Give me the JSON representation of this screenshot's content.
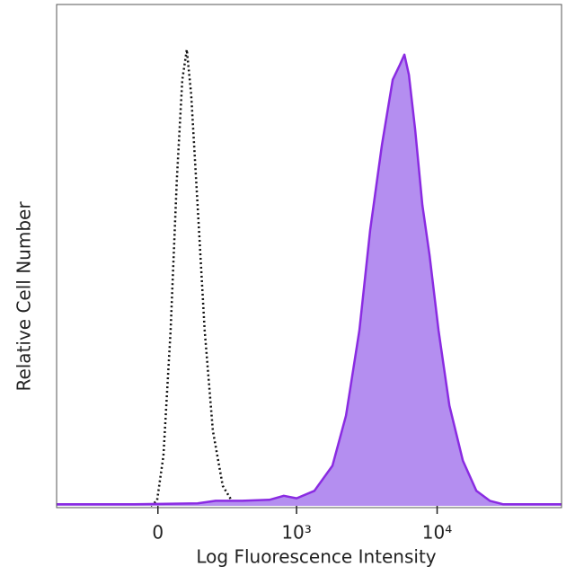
{
  "chart_data": {
    "type": "flow-histogram",
    "x_label": "Log Fluorescence Intensity",
    "y_label": "Relative Cell Number",
    "x_scale": "arcsinh",
    "xlim": [
      -530,
      76000
    ],
    "ylim": [
      0,
      100
    ],
    "xticks": [
      0,
      {
        "value": 1000,
        "label": "10³"
      },
      {
        "value": 10000,
        "label": "10⁴"
      }
    ],
    "series": [
      {
        "style": "dotted",
        "color": "#111111",
        "x": [
          -25,
          -3,
          19,
          44,
          66,
          86,
          103,
          120,
          146,
          177,
          215,
          267,
          320,
          367
        ],
        "values": [
          0,
          1,
          10,
          35,
          65,
          85,
          91,
          82,
          60,
          35,
          15,
          4,
          1,
          0
        ]
      },
      {
        "style": "filled",
        "color": "#8a2be2",
        "fill": "#b48ef0",
        "x": [
          -530,
          -82,
          146,
          229,
          390,
          633,
          808,
          1000,
          1344,
          1808,
          2258,
          2813,
          3355,
          4066,
          4845,
          5446,
          5864,
          6309,
          6995,
          7862,
          8841,
          10234,
          12217,
          15213,
          18948,
          23611,
          29413,
          76000
        ],
        "values": [
          0.3,
          0.3,
          0.5,
          1,
          1,
          1.2,
          2,
          1.5,
          3,
          8,
          18,
          35,
          55,
          72,
          85,
          88,
          90,
          86,
          75,
          60,
          50,
          35,
          20,
          9,
          3,
          1,
          0.3,
          0.3
        ]
      }
    ]
  }
}
